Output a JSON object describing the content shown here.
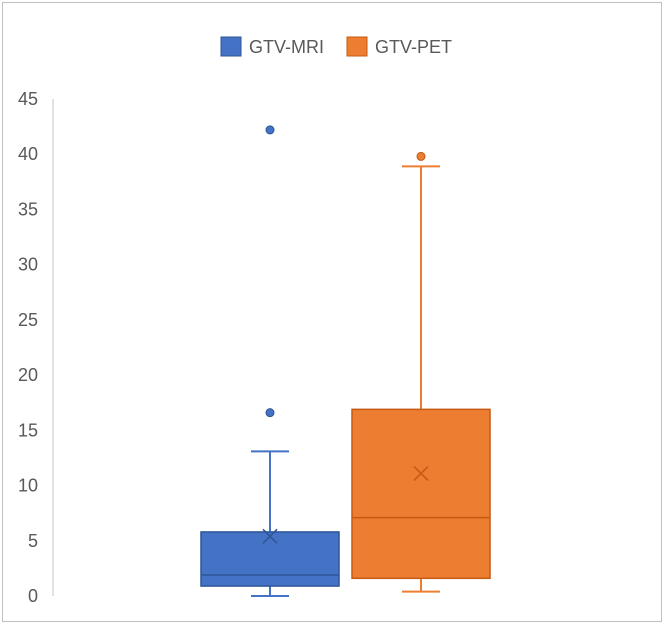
{
  "chart_data": {
    "type": "box",
    "title": "",
    "xlabel": "",
    "ylabel": "",
    "ylim": [
      0,
      45
    ],
    "yticks": [
      0,
      5,
      10,
      15,
      20,
      25,
      30,
      35,
      40,
      45
    ],
    "grid": false,
    "legend_position": "top-center",
    "series": [
      {
        "name": "GTV-MRI",
        "color": "#4472c4",
        "min": 0,
        "q1": 0.9,
        "median": 1.9,
        "q3": 5.8,
        "max": 13.1,
        "mean": 5.4,
        "outliers": [
          16.6,
          42.2
        ]
      },
      {
        "name": "GTV-PET",
        "color": "#ed7d31",
        "min": 0.4,
        "q1": 1.6,
        "median": 7.1,
        "q3": 16.9,
        "max": 38.9,
        "mean": 11.1,
        "outliers": [
          39.8
        ]
      }
    ]
  }
}
